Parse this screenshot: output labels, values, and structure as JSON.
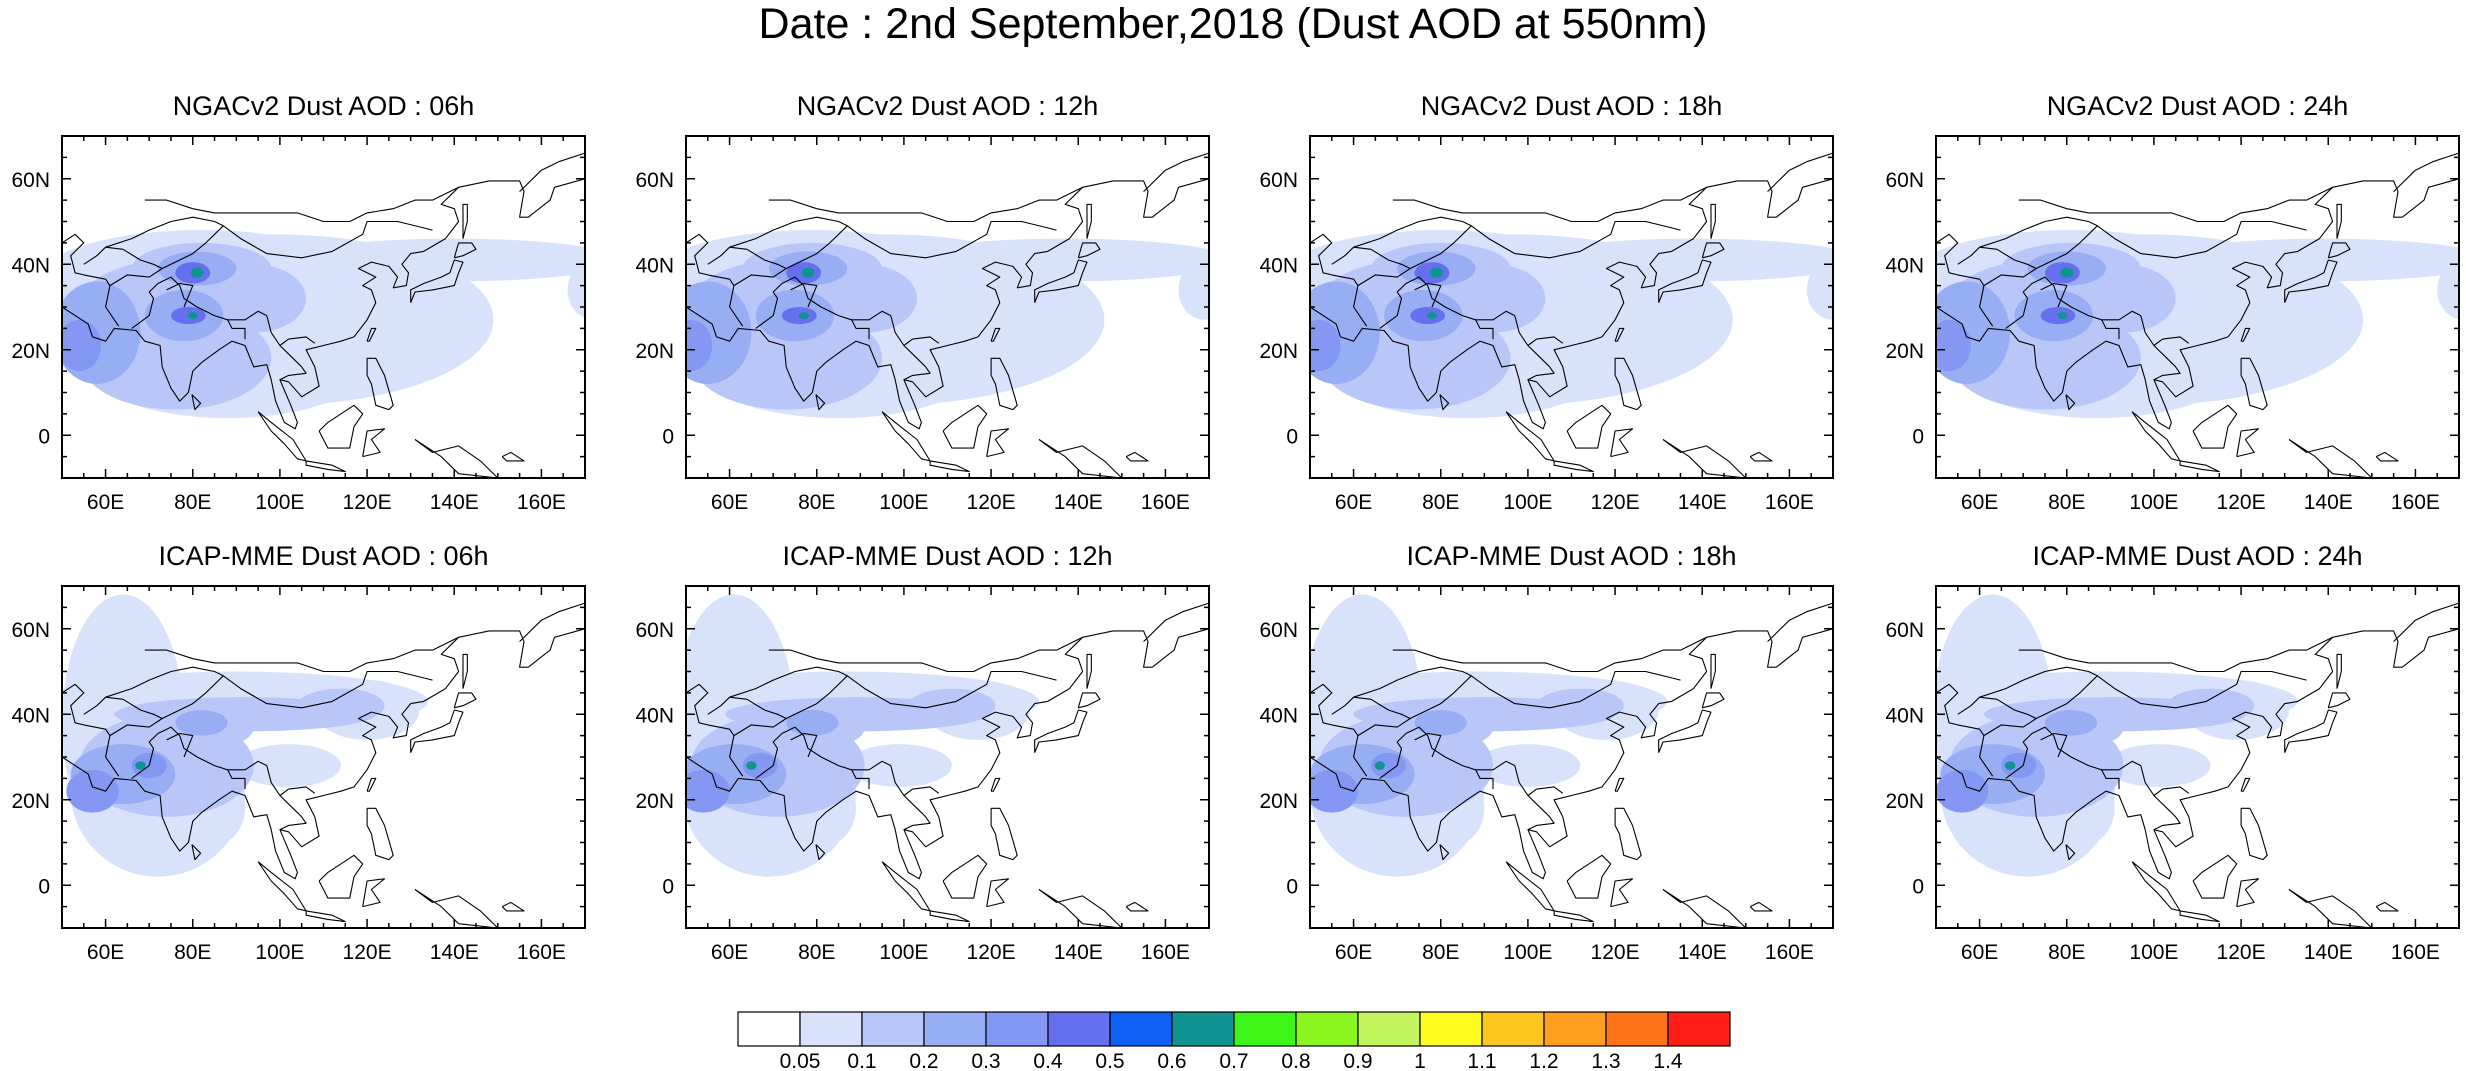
{
  "title": "Date : 2nd September,2018 (Dust AOD at 550nm)",
  "map": {
    "lon_range": [
      50,
      170
    ],
    "lat_range": [
      -10,
      70
    ],
    "lon_ticks": [
      "60E",
      "80E",
      "100E",
      "120E",
      "140E",
      "160E"
    ],
    "lat_ticks": [
      "60N",
      "40N",
      "20N",
      "0"
    ],
    "lon_tick_values": [
      60,
      80,
      100,
      120,
      140,
      160
    ],
    "lat_tick_values": [
      60,
      40,
      20,
      0
    ]
  },
  "panels": [
    {
      "title": "NGACv2 Dust AOD : 06h",
      "model": "ngac"
    },
    {
      "title": "NGACv2 Dust AOD : 12h",
      "model": "ngac"
    },
    {
      "title": "NGACv2 Dust AOD : 18h",
      "model": "ngac"
    },
    {
      "title": "NGACv2 Dust AOD : 24h",
      "model": "ngac"
    },
    {
      "title": "ICAP-MME Dust AOD : 06h",
      "model": "icap"
    },
    {
      "title": "ICAP-MME Dust AOD : 12h",
      "model": "icap"
    },
    {
      "title": "ICAP-MME Dust AOD : 18h",
      "model": "icap"
    },
    {
      "title": "ICAP-MME Dust AOD : 24h",
      "model": "icap"
    }
  ],
  "colorbar": {
    "labels": [
      "0.05",
      "0.1",
      "0.2",
      "0.3",
      "0.4",
      "0.5",
      "0.6",
      "0.7",
      "0.8",
      "0.9",
      "1",
      "1.1",
      "1.2",
      "1.3",
      "1.4"
    ],
    "colors": [
      "#ffffff",
      "#d9e2fb",
      "#b9c7f8",
      "#98aef4",
      "#8497f2",
      "#6670ef",
      "#0f5ff5",
      "#0f9492",
      "#3df518",
      "#8cf51f",
      "#c3f55e",
      "#fffc1f",
      "#ffc51f",
      "#ff9e1f",
      "#ff7417",
      "#ff1f17"
    ]
  }
}
